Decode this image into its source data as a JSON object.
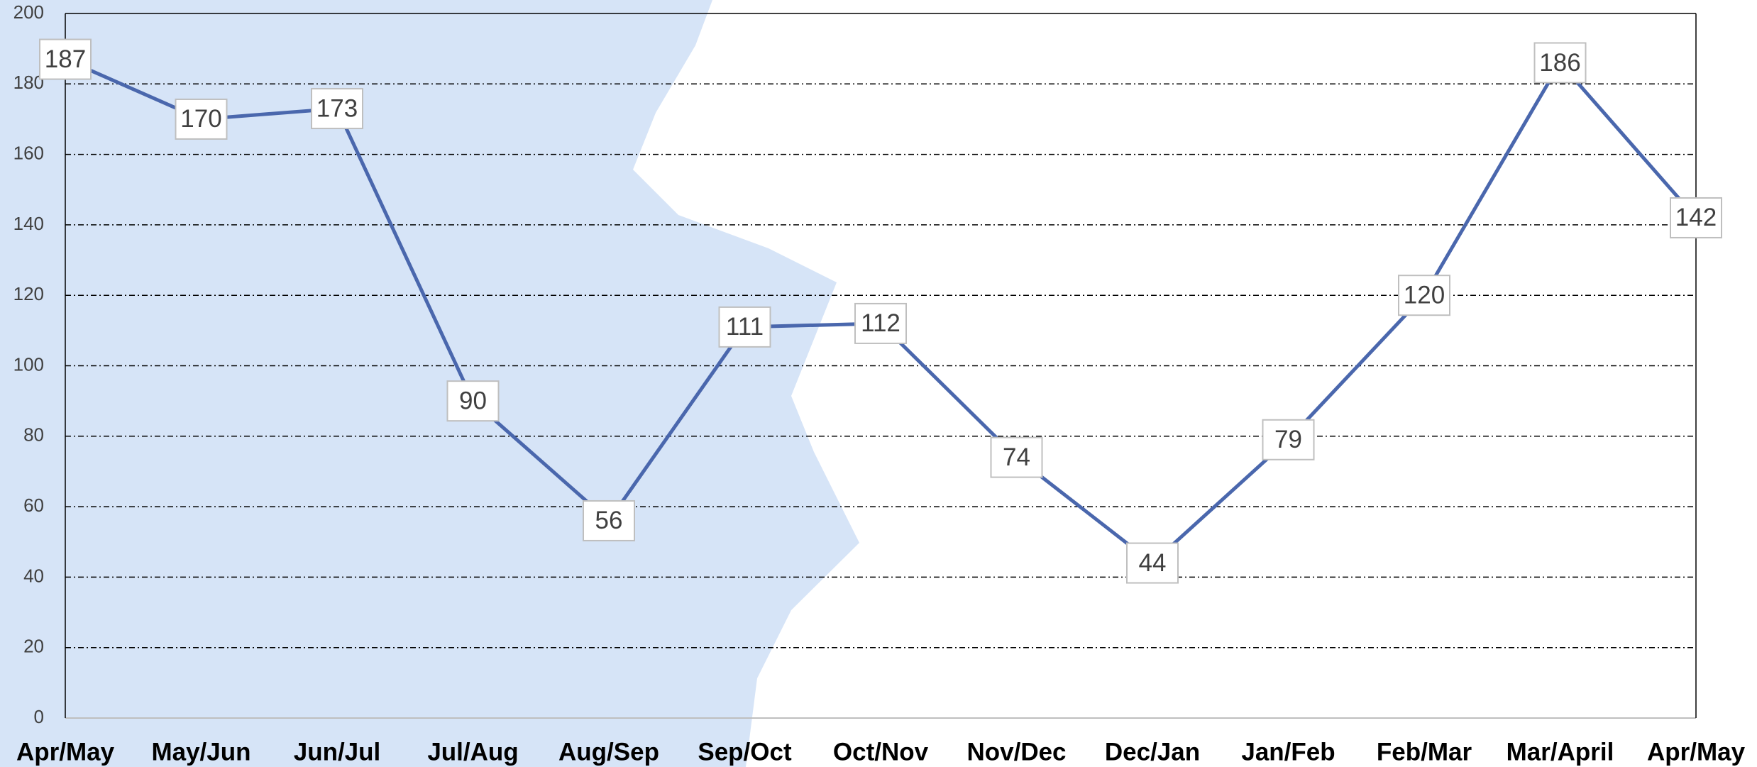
{
  "chart_data": {
    "type": "line",
    "categories": [
      "Apr/May",
      "May/Jun",
      "Jun/Jul",
      "Jul/Aug",
      "Aug/Sep",
      "Sep/Oct",
      "Oct/Nov",
      "Nov/Dec",
      "Dec/Jan",
      "Jan/Feb",
      "Feb/Mar",
      "Mar/April",
      "Apr/May"
    ],
    "values": [
      187,
      170,
      173,
      90,
      56,
      111,
      112,
      74,
      44,
      79,
      120,
      186,
      142
    ],
    "color": "#4a67ad",
    "ylim": [
      0,
      200
    ],
    "yticks": [
      0,
      20,
      40,
      60,
      80,
      100,
      120,
      140,
      160,
      180,
      200
    ],
    "grid": true
  }
}
